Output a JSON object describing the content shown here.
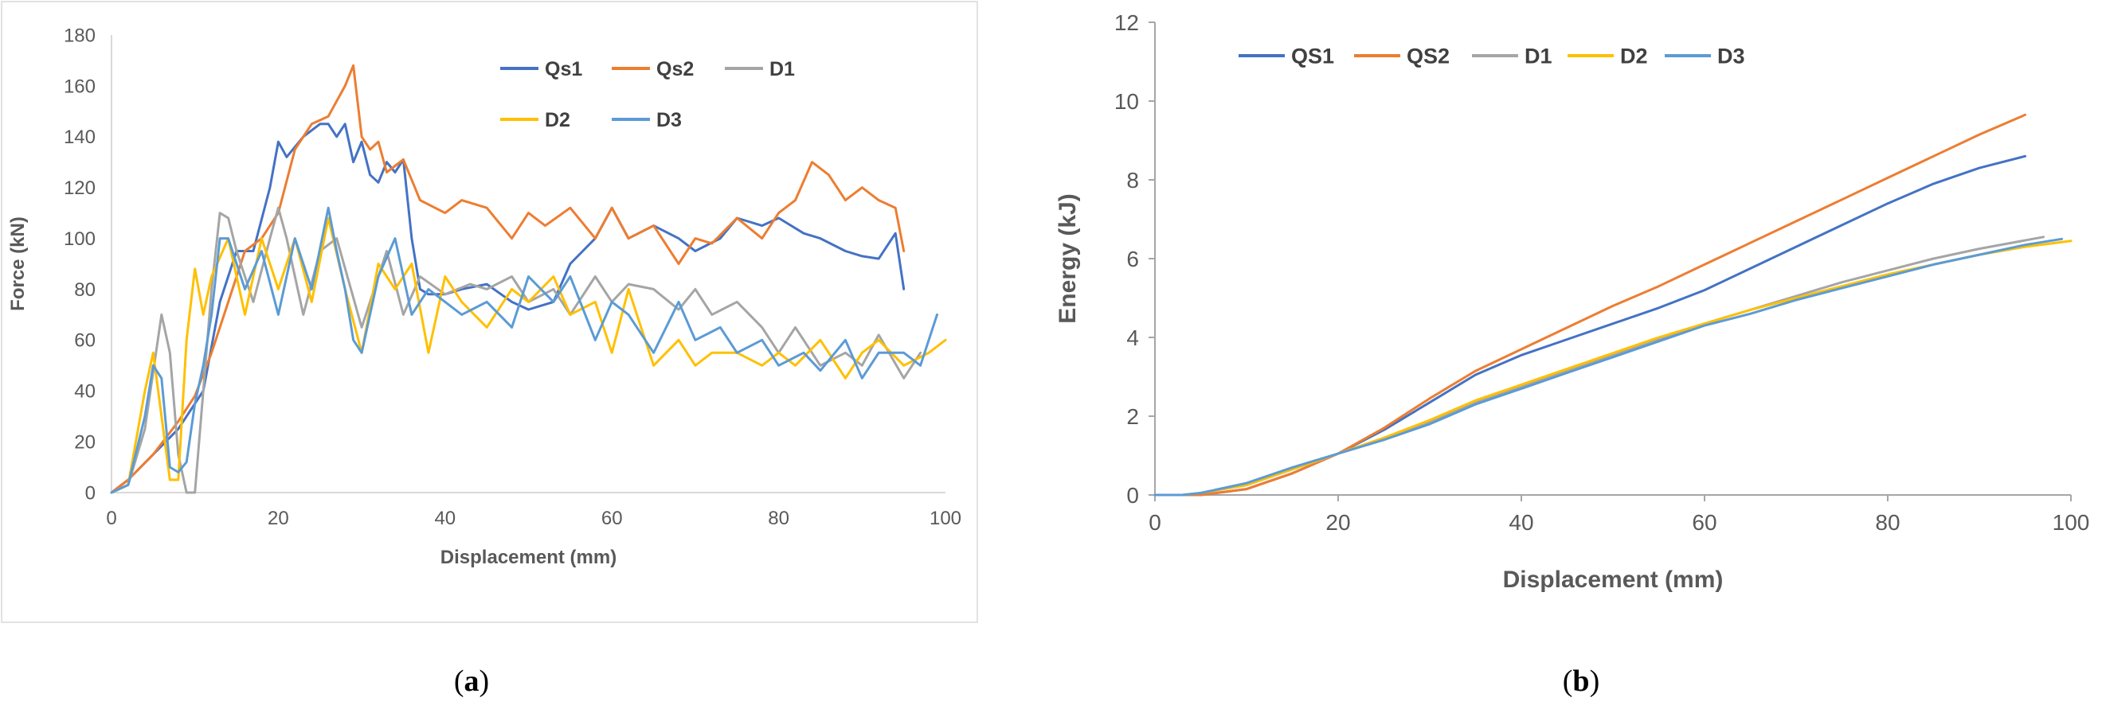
{
  "chart_data": [
    {
      "id": "a",
      "type": "line",
      "caption": {
        "open": "(",
        "letter": "a",
        "close": ")"
      },
      "xlabel": "Displacement (mm)",
      "ylabel": "Force (kN)",
      "xlim": [
        0,
        100
      ],
      "ylim": [
        0,
        180
      ],
      "xticks": [
        "0",
        "20",
        "40",
        "60",
        "80",
        "100"
      ],
      "yticks": [
        "0",
        "20",
        "40",
        "60",
        "80",
        "100",
        "120",
        "140",
        "160",
        "180"
      ],
      "grid": false,
      "legend_position": "top-right",
      "series": [
        {
          "name": "Qs1",
          "color": "#4472C4",
          "x": [
            0,
            2,
            5,
            8,
            11,
            13,
            15,
            17,
            19,
            20,
            21,
            23,
            25,
            26,
            27,
            28,
            29,
            30,
            31,
            32,
            33,
            34,
            35,
            36,
            37,
            38,
            40,
            42,
            45,
            48,
            50,
            53,
            55,
            58,
            60,
            62,
            65,
            68,
            70,
            73,
            75,
            78,
            80,
            83,
            85,
            88,
            90,
            92,
            94,
            95
          ],
          "y": [
            0,
            5,
            15,
            25,
            40,
            75,
            95,
            95,
            120,
            138,
            132,
            140,
            145,
            145,
            140,
            145,
            130,
            138,
            125,
            122,
            130,
            126,
            131,
            100,
            80,
            78,
            78,
            80,
            82,
            75,
            72,
            75,
            90,
            100,
            112,
            100,
            105,
            100,
            95,
            100,
            108,
            105,
            108,
            102,
            100,
            95,
            93,
            92,
            102,
            80
          ]
        },
        {
          "name": "Qs2",
          "color": "#ED7D31",
          "x": [
            0,
            2,
            5,
            8,
            10,
            12,
            14,
            16,
            18,
            20,
            22,
            24,
            26,
            28,
            29,
            30,
            31,
            32,
            33,
            35,
            37,
            40,
            42,
            45,
            48,
            50,
            52,
            55,
            58,
            60,
            62,
            65,
            68,
            70,
            72,
            75,
            78,
            80,
            82,
            84,
            86,
            88,
            90,
            92,
            94,
            95
          ],
          "y": [
            0,
            5,
            15,
            28,
            38,
            55,
            75,
            95,
            100,
            110,
            135,
            145,
            148,
            160,
            168,
            140,
            135,
            138,
            126,
            131,
            115,
            110,
            115,
            112,
            100,
            110,
            105,
            112,
            100,
            112,
            100,
            105,
            90,
            100,
            98,
            108,
            100,
            110,
            115,
            130,
            125,
            115,
            120,
            115,
            112,
            95
          ]
        },
        {
          "name": "D1",
          "color": "#A5A5A5",
          "x": [
            0,
            2,
            4,
            6,
            7,
            8,
            9,
            10,
            11,
            12,
            13,
            14,
            15,
            17,
            19,
            20,
            21,
            22,
            23,
            25,
            27,
            30,
            33,
            35,
            37,
            40,
            43,
            45,
            48,
            50,
            53,
            55,
            58,
            60,
            62,
            65,
            68,
            70,
            72,
            75,
            78,
            80,
            82,
            85,
            88,
            90,
            92,
            95,
            97
          ],
          "y": [
            0,
            3,
            25,
            70,
            55,
            15,
            0,
            0,
            40,
            80,
            110,
            108,
            95,
            75,
            100,
            112,
            100,
            85,
            70,
            95,
            100,
            65,
            95,
            70,
            85,
            78,
            82,
            80,
            85,
            75,
            80,
            70,
            85,
            75,
            82,
            80,
            72,
            80,
            70,
            75,
            65,
            55,
            65,
            50,
            55,
            50,
            62,
            45,
            55
          ]
        },
        {
          "name": "D2",
          "color": "#FFC000",
          "x": [
            0,
            2,
            4,
            5,
            6,
            7,
            8,
            9,
            10,
            11,
            12,
            14,
            16,
            18,
            20,
            22,
            24,
            26,
            28,
            30,
            32,
            34,
            36,
            38,
            40,
            42,
            45,
            48,
            50,
            53,
            55,
            58,
            60,
            62,
            65,
            68,
            70,
            72,
            75,
            78,
            80,
            82,
            85,
            88,
            90,
            92,
            95,
            98,
            100
          ],
          "y": [
            0,
            3,
            40,
            55,
            30,
            5,
            5,
            60,
            88,
            70,
            85,
            100,
            70,
            100,
            80,
            100,
            75,
            108,
            80,
            55,
            90,
            80,
            90,
            55,
            85,
            75,
            65,
            80,
            75,
            85,
            70,
            75,
            55,
            80,
            50,
            60,
            50,
            55,
            55,
            50,
            55,
            50,
            60,
            45,
            55,
            60,
            50,
            55,
            60
          ]
        },
        {
          "name": "D3",
          "color": "#5B9BD5",
          "x": [
            0,
            2,
            4,
            5,
            6,
            7,
            8,
            9,
            10,
            11,
            12,
            13,
            14,
            16,
            18,
            20,
            22,
            24,
            26,
            27,
            28,
            29,
            30,
            32,
            34,
            36,
            38,
            40,
            42,
            45,
            48,
            50,
            53,
            55,
            58,
            60,
            62,
            65,
            68,
            70,
            73,
            75,
            78,
            80,
            83,
            85,
            88,
            90,
            92,
            95,
            97,
            99
          ],
          "y": [
            0,
            3,
            30,
            50,
            45,
            10,
            8,
            12,
            35,
            50,
            70,
            100,
            100,
            80,
            95,
            70,
            100,
            80,
            112,
            95,
            80,
            60,
            55,
            85,
            100,
            70,
            80,
            75,
            70,
            75,
            65,
            85,
            75,
            85,
            60,
            75,
            70,
            55,
            75,
            60,
            65,
            55,
            60,
            50,
            55,
            48,
            60,
            45,
            55,
            55,
            50,
            70
          ]
        }
      ],
      "legend": [
        {
          "name": "Qs1",
          "color": "#4472C4"
        },
        {
          "name": "Qs2",
          "color": "#ED7D31"
        },
        {
          "name": "D1",
          "color": "#A5A5A5"
        },
        {
          "name": "D2",
          "color": "#FFC000"
        },
        {
          "name": "D3",
          "color": "#5B9BD5"
        }
      ]
    },
    {
      "id": "b",
      "type": "line",
      "caption": {
        "open": "(",
        "letter": "b",
        "close": ")"
      },
      "xlabel": "Displacement (mm)",
      "ylabel": "Energy (kJ)",
      "xlim": [
        0,
        100
      ],
      "ylim": [
        0,
        12
      ],
      "xticks": [
        "0",
        "20",
        "40",
        "60",
        "80",
        "100"
      ],
      "yticks": [
        "0",
        "2",
        "4",
        "6",
        "8",
        "10",
        "12"
      ],
      "grid": false,
      "legend_position": "top-left",
      "series": [
        {
          "name": "QS1",
          "color": "#4472C4",
          "x": [
            0,
            3,
            5,
            10,
            15,
            20,
            25,
            30,
            35,
            40,
            45,
            50,
            55,
            60,
            65,
            70,
            75,
            80,
            85,
            90,
            95
          ],
          "y": [
            0,
            0,
            0,
            0.15,
            0.55,
            1.05,
            1.65,
            2.35,
            3.05,
            3.55,
            3.95,
            4.35,
            4.75,
            5.2,
            5.75,
            6.3,
            6.85,
            7.4,
            7.9,
            8.3,
            8.6
          ]
        },
        {
          "name": "QS2",
          "color": "#ED7D31",
          "x": [
            0,
            3,
            5,
            10,
            15,
            20,
            25,
            30,
            35,
            40,
            45,
            50,
            55,
            60,
            65,
            70,
            75,
            80,
            85,
            90,
            95
          ],
          "y": [
            0,
            0,
            0,
            0.15,
            0.55,
            1.05,
            1.7,
            2.45,
            3.15,
            3.7,
            4.25,
            4.8,
            5.3,
            5.85,
            6.4,
            6.95,
            7.5,
            8.05,
            8.6,
            9.15,
            9.65
          ]
        },
        {
          "name": "D1",
          "color": "#A5A5A5",
          "x": [
            0,
            3,
            5,
            10,
            15,
            20,
            25,
            30,
            35,
            40,
            45,
            50,
            55,
            60,
            65,
            70,
            75,
            80,
            85,
            90,
            97
          ],
          "y": [
            0,
            0,
            0.05,
            0.25,
            0.65,
            1.05,
            1.4,
            1.85,
            2.35,
            2.75,
            3.15,
            3.55,
            3.95,
            4.35,
            4.7,
            5.05,
            5.4,
            5.7,
            6.0,
            6.25,
            6.55
          ]
        },
        {
          "name": "D2",
          "color": "#FFC000",
          "x": [
            0,
            3,
            5,
            10,
            15,
            20,
            25,
            30,
            35,
            40,
            45,
            50,
            55,
            60,
            65,
            70,
            75,
            80,
            85,
            90,
            95,
            100
          ],
          "y": [
            0,
            0,
            0.05,
            0.25,
            0.65,
            1.05,
            1.45,
            1.9,
            2.4,
            2.8,
            3.2,
            3.6,
            4.0,
            4.35,
            4.7,
            5.0,
            5.3,
            5.6,
            5.85,
            6.1,
            6.3,
            6.45
          ]
        },
        {
          "name": "D3",
          "color": "#5B9BD5",
          "x": [
            0,
            3,
            5,
            10,
            15,
            20,
            25,
            30,
            35,
            40,
            45,
            50,
            55,
            60,
            65,
            70,
            75,
            80,
            85,
            90,
            95,
            99
          ],
          "y": [
            0,
            0,
            0.05,
            0.3,
            0.7,
            1.05,
            1.4,
            1.8,
            2.3,
            2.7,
            3.1,
            3.5,
            3.9,
            4.3,
            4.6,
            4.95,
            5.25,
            5.55,
            5.85,
            6.1,
            6.35,
            6.5
          ]
        }
      ],
      "legend": [
        {
          "name": "QS1",
          "color": "#4472C4"
        },
        {
          "name": "QS2",
          "color": "#ED7D31"
        },
        {
          "name": "D1",
          "color": "#A5A5A5"
        },
        {
          "name": "D2",
          "color": "#FFC000"
        },
        {
          "name": "D3",
          "color": "#5B9BD5"
        }
      ]
    }
  ]
}
